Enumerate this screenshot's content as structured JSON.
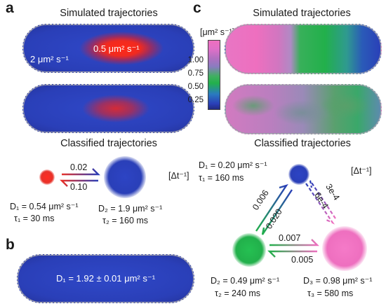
{
  "panels": {
    "a": "a",
    "b": "b",
    "c": "c"
  },
  "panel_a": {
    "sim_title": "Simulated trajectories",
    "class_title": "Classified trajectories",
    "inner_label": "0.5 μm² s⁻¹",
    "outer_label": "2 μm² s⁻¹",
    "rate_forward": "0.02",
    "rate_backward": "0.10",
    "rate_unit": "[Δt⁻¹]",
    "state1": {
      "D": "D₁ = 0.54 μm² s⁻¹",
      "tau": "τ₁ = 30 ms",
      "color": "#e8322a"
    },
    "state2": {
      "D": "D₂ = 1.9 μm² s⁻¹",
      "tau": "τ₂ = 160 ms",
      "color": "#2a3fb8"
    }
  },
  "panel_b": {
    "label": "D₁ = 1.92 ± 0.01 μm² s⁻¹"
  },
  "panel_c": {
    "sim_title": "Simulated trajectories",
    "class_title": "Classified trajectories",
    "colorbar_unit": "[μm² s⁻¹]",
    "colorbar_ticks": [
      "1.00",
      "0.75",
      "0.50",
      "0.25"
    ],
    "rate_unit": "[Δt⁻¹]",
    "state1": {
      "D": "D₁ = 0.20 μm² s⁻¹",
      "tau": "τ₁ = 160 ms",
      "color": "#2a3fb8"
    },
    "state2": {
      "D": "D₂ = 0.49 μm² s⁻¹",
      "tau": "τ₂ = 240 ms",
      "color": "#22b04b"
    },
    "state3": {
      "D": "D₃ = 0.98 μm² s⁻¹",
      "tau": "τ₃ = 580 ms",
      "color": "#ee6fbf"
    },
    "rates": {
      "r_2to1": "0.006",
      "r_1to2": "0.020",
      "r_3to1": "3e-4",
      "r_1to3": "6e-4",
      "r_2to3": "0.007",
      "r_3to2": "0.005"
    }
  }
}
